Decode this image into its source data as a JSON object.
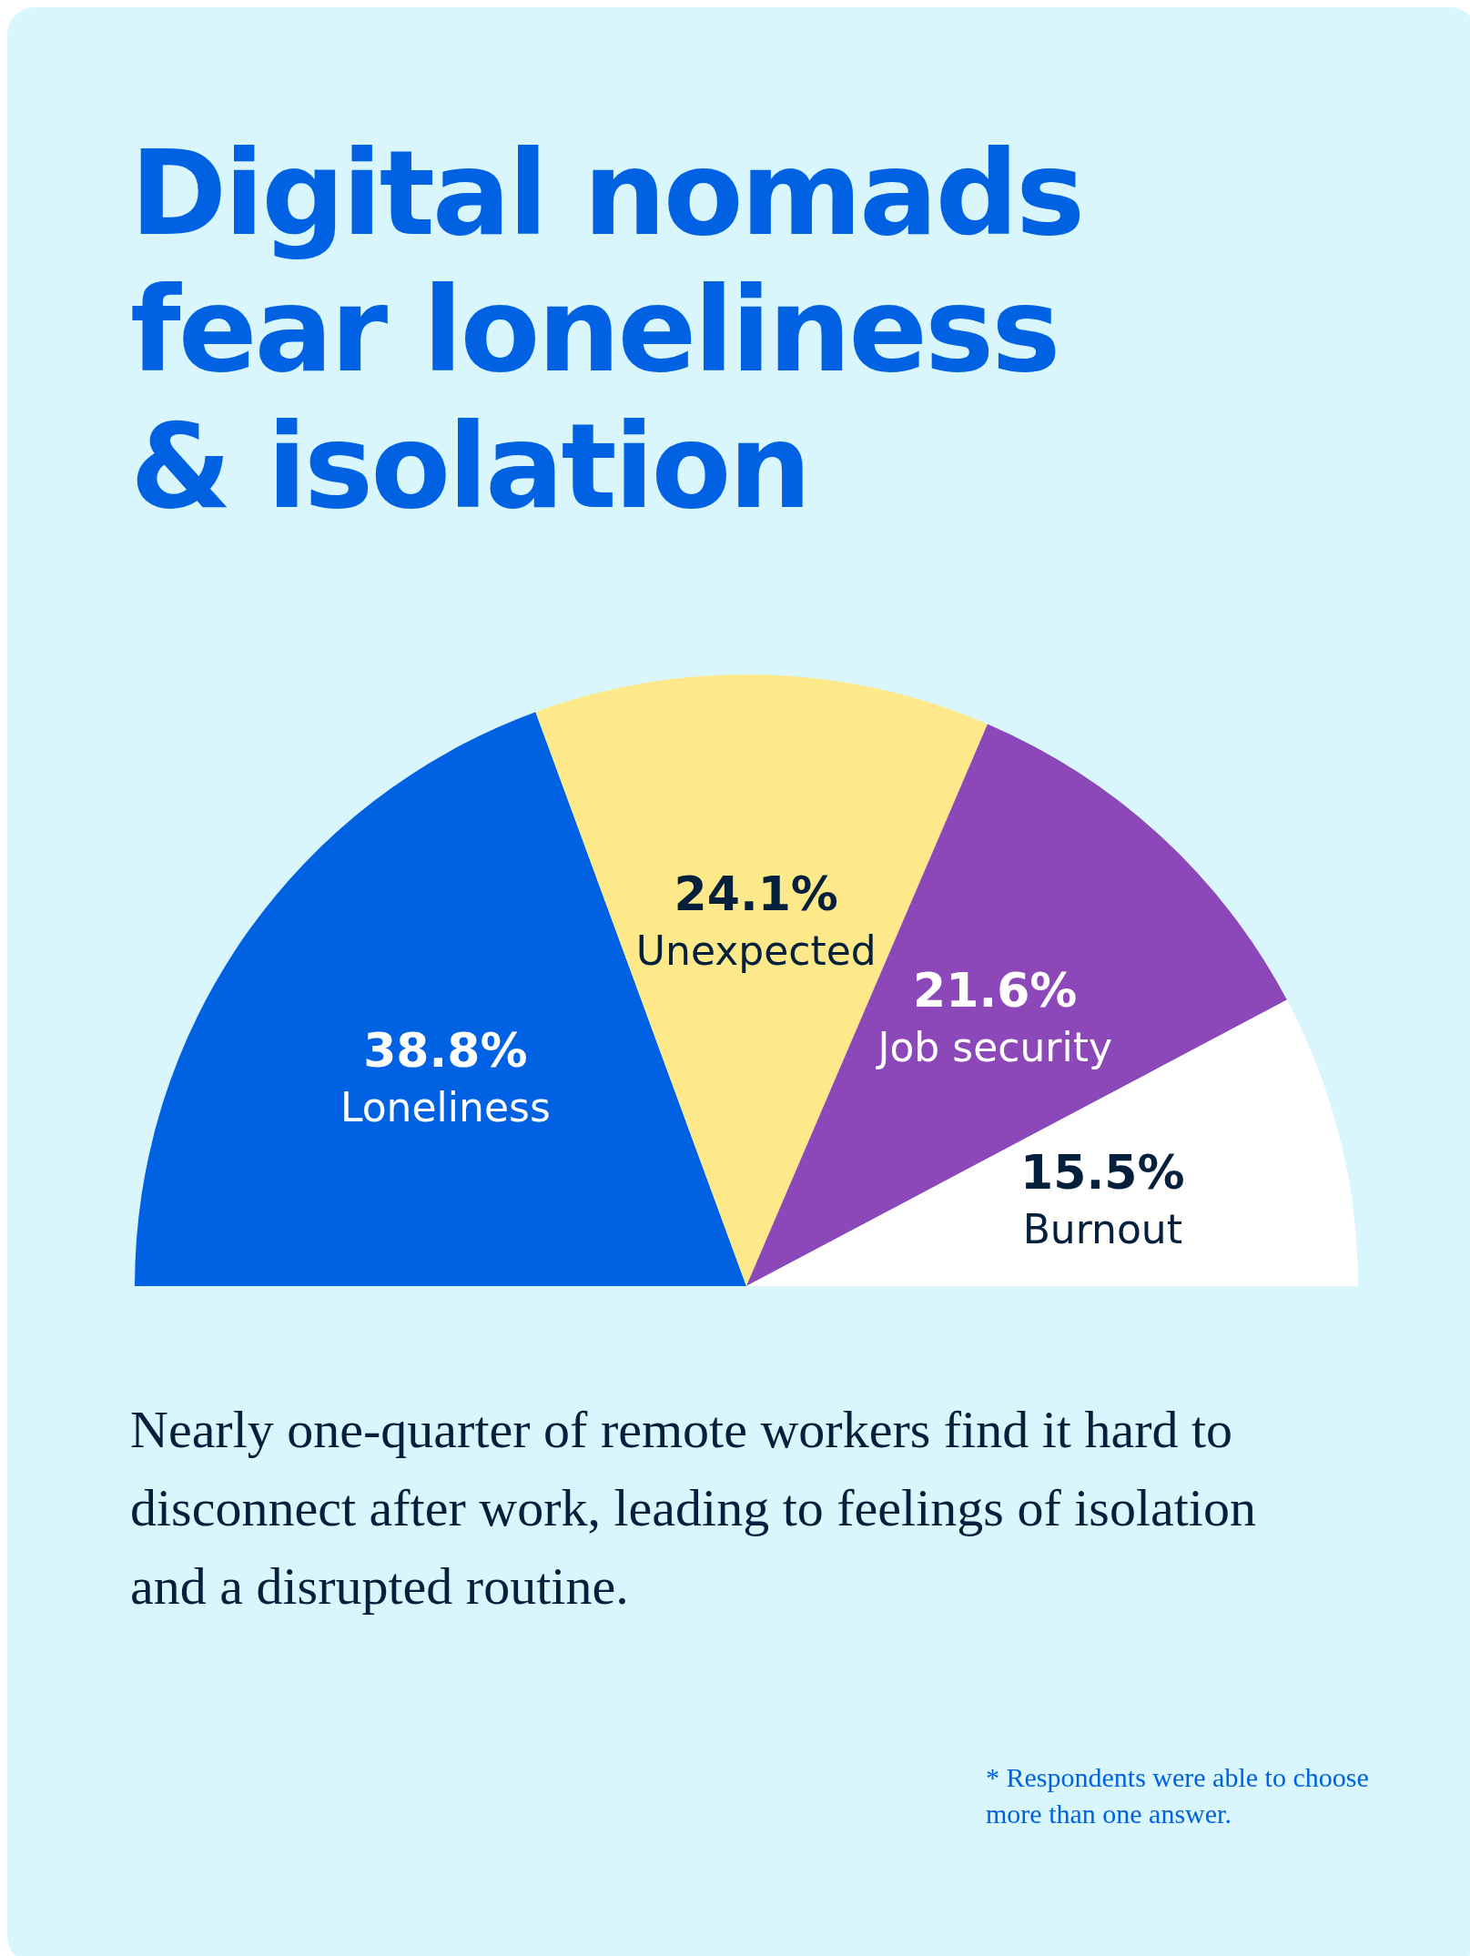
{
  "chart_data": {
    "type": "pie",
    "title": "Digital nomads fear loneliness & isolation",
    "categories": [
      "Loneliness",
      "Unexpected",
      "Job security",
      "Burnout"
    ],
    "values": [
      38.8,
      24.1,
      21.6,
      15.5
    ],
    "value_labels": [
      "38.8%",
      "24.1%",
      "21.6%",
      "15.5%"
    ],
    "colors": [
      "#0062e3",
      "#fde98a",
      "#8c47b8",
      "#ffffff"
    ],
    "annotations": [
      "Nearly one-quarter of remote workers find it hard to disconnect after work, leading to feelings of isolation and a disrupted routine.",
      "* Respondents were able to choose more than one answer."
    ],
    "legend": false
  }
}
